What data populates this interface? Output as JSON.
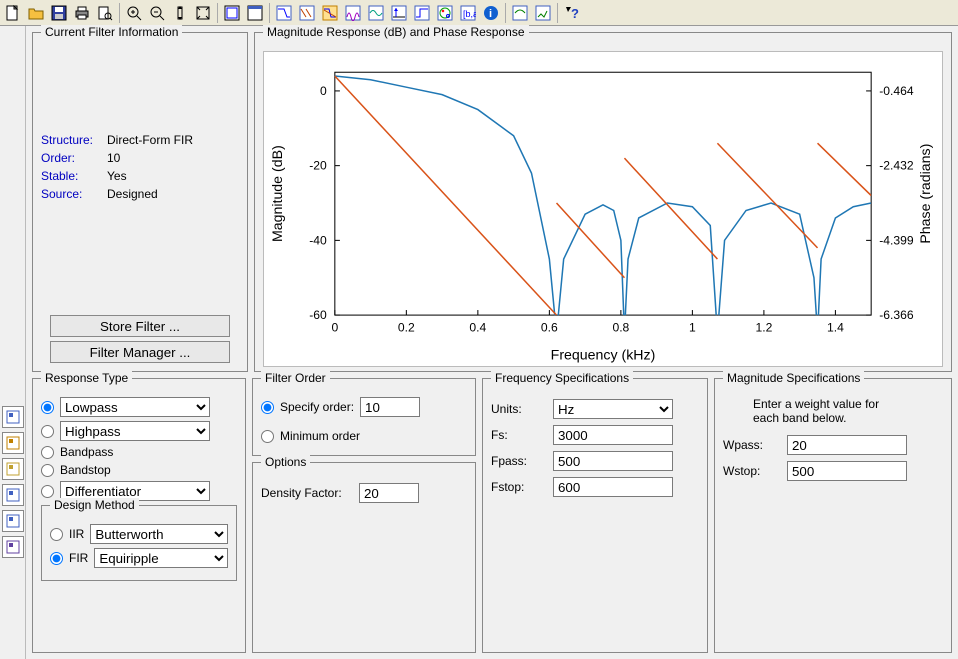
{
  "toolbar_icons": [
    "new-icon",
    "open-icon",
    "save-icon",
    "print-icon",
    "print-preview-icon",
    "|",
    "zoom-in-icon",
    "zoom-out-icon",
    "zoom-y-icon",
    "zoom-full-icon",
    "|",
    "new-fig-icon",
    "full-view-icon",
    "|",
    "mag-resp-icon",
    "phase-resp-icon",
    "mag-phase-icon",
    "group-delay-icon",
    "phase-delay-icon",
    "impulse-icon",
    "step-icon",
    "pole-zero-icon",
    "coeff-icon",
    "info-icon",
    "|",
    "export-icon",
    "code-icon",
    "|",
    "help-icon"
  ],
  "sidebar_icons": [
    "side-a-icon",
    "side-b-icon",
    "side-c-icon",
    "side-d-icon",
    "side-e-icon",
    "side-f-icon"
  ],
  "panels": {
    "current_filter_info": {
      "title": "Current Filter Information",
      "rows": [
        {
          "k": "Structure:",
          "v": "Direct-Form FIR"
        },
        {
          "k": "Order:",
          "v": "10"
        },
        {
          "k": "Stable:",
          "v": "Yes"
        },
        {
          "k": "Source:",
          "v": "Designed"
        }
      ],
      "store_btn": "Store Filter ...",
      "manager_btn": "Filter Manager ..."
    },
    "chart": {
      "title": "Magnitude Response (dB) and Phase Response",
      "xlabel": "Frequency (kHz)",
      "ylabel_left": "Magnitude (dB)",
      "ylabel_right": "Phase (radians)",
      "xlim": [
        0,
        1.5
      ],
      "xtick_step": 0.2,
      "ylim_left": [
        -60,
        5
      ],
      "ytick_left": [
        -60,
        -40,
        -20,
        0
      ],
      "ytick_right": [
        -6.366,
        -4.399,
        -2.432,
        -0.464
      ],
      "bg": "#ffffff",
      "grid": "#000000",
      "mag_color": "#1f77b4",
      "phase_color": "#d95319",
      "mag_points": [
        [
          0,
          4
        ],
        [
          0.1,
          3
        ],
        [
          0.2,
          1
        ],
        [
          0.3,
          -1
        ],
        [
          0.4,
          -5
        ],
        [
          0.5,
          -12
        ],
        [
          0.55,
          -22
        ],
        [
          0.6,
          -45
        ],
        [
          0.62,
          -65
        ],
        [
          0.64,
          -45
        ],
        [
          0.7,
          -33
        ],
        [
          0.75,
          -30.5
        ],
        [
          0.78,
          -32
        ],
        [
          0.8,
          -40
        ],
        [
          0.81,
          -65
        ],
        [
          0.82,
          -45
        ],
        [
          0.85,
          -34
        ],
        [
          0.93,
          -30
        ],
        [
          1.0,
          -31
        ],
        [
          1.05,
          -36
        ],
        [
          1.07,
          -65
        ],
        [
          1.09,
          -40
        ],
        [
          1.15,
          -32
        ],
        [
          1.22,
          -30
        ],
        [
          1.3,
          -33
        ],
        [
          1.34,
          -50
        ],
        [
          1.35,
          -65
        ],
        [
          1.36,
          -45
        ],
        [
          1.4,
          -34
        ],
        [
          1.45,
          -31
        ],
        [
          1.5,
          -30
        ]
      ],
      "phase_segments": [
        [
          [
            0,
            4
          ],
          [
            0.62,
            -60
          ]
        ],
        [
          [
            0.62,
            -30
          ],
          [
            0.81,
            -50
          ]
        ],
        [
          [
            0.81,
            -18
          ],
          [
            1.07,
            -45
          ]
        ],
        [
          [
            1.07,
            -14
          ],
          [
            1.35,
            -42
          ]
        ],
        [
          [
            1.35,
            -14
          ],
          [
            1.5,
            -28
          ]
        ]
      ]
    },
    "response_type": {
      "title": "Response Type",
      "options": [
        {
          "label": "Lowpass",
          "select": true,
          "combo": true,
          "checked": true
        },
        {
          "label": "Highpass",
          "select": true,
          "combo": true
        },
        {
          "label": "Bandpass"
        },
        {
          "label": "Bandstop"
        },
        {
          "label": "Differentiator",
          "combo": true
        }
      ],
      "design_method": {
        "title": "Design Method",
        "iir": {
          "label": "IIR",
          "combo": "Butterworth"
        },
        "fir": {
          "label": "FIR",
          "combo": "Equiripple",
          "checked": true
        }
      }
    },
    "filter_order": {
      "title": "Filter Order",
      "specify_label": "Specify order:",
      "specify_value": "10",
      "specify_checked": true,
      "minimum_label": "Minimum order",
      "options": {
        "title": "Options",
        "density_label": "Density Factor:",
        "density_value": "20"
      }
    },
    "freq_spec": {
      "title": "Frequency Specifications",
      "units_label": "Units:",
      "units_value": "Hz",
      "rows": [
        {
          "label": "Fs:",
          "value": "3000"
        },
        {
          "label": "Fpass:",
          "value": "500"
        },
        {
          "label": "Fstop:",
          "value": "600"
        }
      ]
    },
    "mag_spec": {
      "title": "Magnitude Specifications",
      "hint": "Enter a weight value for each band below.",
      "rows": [
        {
          "label": "Wpass:",
          "value": "20"
        },
        {
          "label": "Wstop:",
          "value": "500"
        }
      ]
    }
  }
}
